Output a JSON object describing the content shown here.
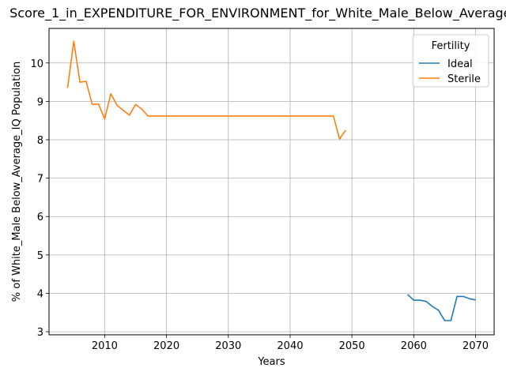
{
  "chart_data": {
    "type": "line",
    "title": "Score_1_in_EXPENDITURE_FOR_ENVIRONMENT_for_White_Male_Below_Average_IQ",
    "xlabel": "Years",
    "ylabel": "% of White_Male Below_Average_IQ Population",
    "xlim": [
      2001,
      2073
    ],
    "ylim": [
      2.92,
      10.9
    ],
    "xticks": [
      2010,
      2020,
      2030,
      2040,
      2050,
      2060,
      2070
    ],
    "yticks": [
      3,
      4,
      5,
      6,
      7,
      8,
      9,
      10
    ],
    "grid": true,
    "legend": {
      "title": "Fertility",
      "position": "top-right"
    },
    "series": [
      {
        "name": "Ideal",
        "color": "#1f77b4",
        "x": [
          2059,
          2060,
          2061,
          2062,
          2063,
          2064,
          2065,
          2066,
          2067,
          2068,
          2069,
          2070
        ],
        "y": [
          3.97,
          3.82,
          3.82,
          3.79,
          3.66,
          3.56,
          3.29,
          3.29,
          3.92,
          3.92,
          3.86,
          3.83
        ]
      },
      {
        "name": "Sterile",
        "color": "#ff7f0e",
        "x": [
          2004,
          2005,
          2006,
          2007,
          2008,
          2009,
          2010,
          2011,
          2012,
          2013,
          2014,
          2015,
          2016,
          2017,
          2018,
          2019,
          2020,
          2025,
          2030,
          2035,
          2040,
          2045,
          2047,
          2048,
          2049
        ],
        "y": [
          9.35,
          10.57,
          9.5,
          9.52,
          8.92,
          8.93,
          8.54,
          9.2,
          8.9,
          8.77,
          8.64,
          8.92,
          8.8,
          8.62,
          8.62,
          8.62,
          8.62,
          8.62,
          8.62,
          8.62,
          8.62,
          8.62,
          8.62,
          8.02,
          8.25
        ]
      }
    ]
  }
}
